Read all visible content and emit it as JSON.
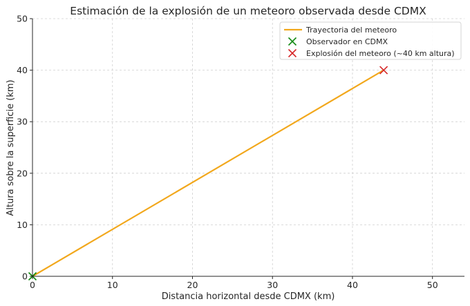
{
  "chart_data": {
    "type": "line",
    "title": "Estimación de la explosión de un meteoro observada desde CDMX",
    "xlabel": "Distancia horizontal desde CDMX (km)",
    "ylabel": "Altura sobre la superficie (km)",
    "xlim": [
      0,
      54
    ],
    "ylim": [
      0,
      50
    ],
    "xticks": [
      0,
      10,
      20,
      30,
      40,
      50
    ],
    "yticks": [
      0,
      10,
      20,
      30,
      40,
      50
    ],
    "grid": true,
    "legend_position": "top-right",
    "series": [
      {
        "name": "Trayectoria del meteoro",
        "kind": "line",
        "color": "#f2a81d",
        "x": [
          0,
          43.9
        ],
        "y": [
          0,
          40
        ]
      },
      {
        "name": "Observador en CDMX",
        "kind": "marker",
        "marker": "x",
        "color": "#138a13",
        "x": [
          0
        ],
        "y": [
          0
        ]
      },
      {
        "name": "Explosión del meteoro (~40 km altura)",
        "kind": "marker",
        "marker": "x",
        "color": "#d62728",
        "x": [
          43.9
        ],
        "y": [
          40
        ]
      }
    ]
  }
}
